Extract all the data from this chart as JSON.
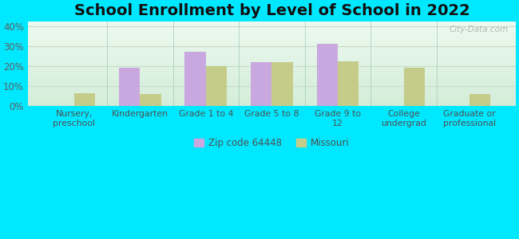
{
  "title": "School Enrollment by Level of School in 2022",
  "categories": [
    "Nursery,\npreschool",
    "Kindergarten",
    "Grade 1 to 4",
    "Grade 5 to 8",
    "Grade 9 to\n12",
    "College\nundergrad",
    "Graduate or\nprofessional"
  ],
  "zip_values": [
    0,
    19,
    27,
    22,
    31,
    0,
    0
  ],
  "missouri_values": [
    6.5,
    6,
    20,
    22,
    22.5,
    19,
    6
  ],
  "zip_color": "#c9a8df",
  "missouri_color": "#c5cc8a",
  "background_outer": "#00e8ff",
  "title_fontsize": 14,
  "ylim": [
    0,
    42
  ],
  "yticks": [
    0,
    10,
    20,
    30,
    40
  ],
  "bar_width": 0.32,
  "legend_label_zip": "Zip code 64448",
  "legend_label_mo": "Missouri",
  "watermark": "City-Data.com",
  "grid_color": "#d8e8d0",
  "separator_color": "#88bbaa"
}
